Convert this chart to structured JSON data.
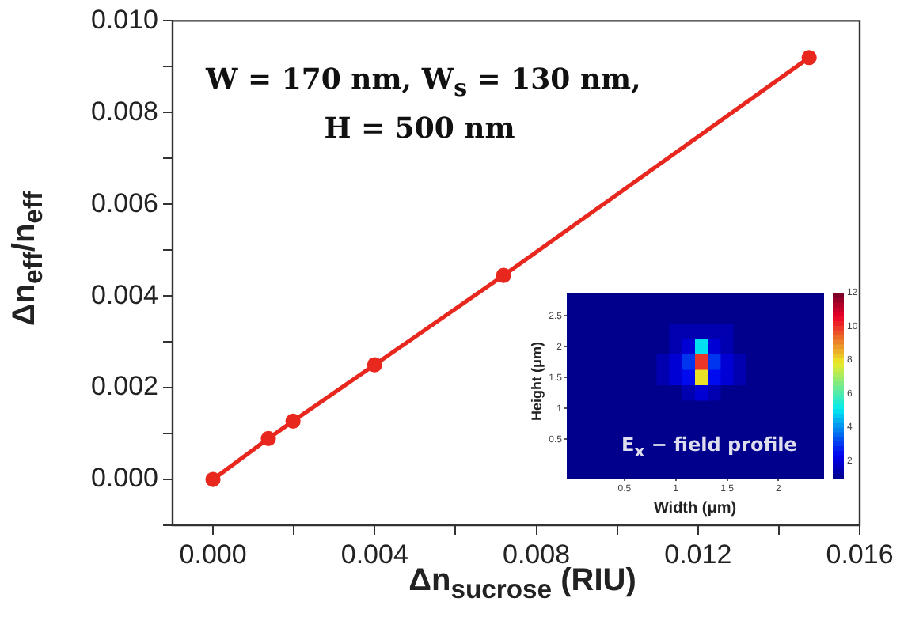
{
  "chart_data": [
    {
      "type": "line",
      "xlabel": "Δn$_{sucrose}$ (RIU)",
      "ylabel": "Δn$_{eff}$/n$_{eff}$",
      "x": [
        0,
        0.00137,
        0.00198,
        0.004,
        0.00719,
        0.01475
      ],
      "series": [
        {
          "color": "#e8281e",
          "values": [
            0,
            0.00089,
            0.00127,
            0.0025,
            0.00445,
            0.0092
          ]
        }
      ],
      "xlim": [
        -0.001,
        0.016
      ],
      "xticks": [
        {
          "value": 0,
          "label": "0.000"
        },
        {
          "value": 0.002,
          "label": null
        },
        {
          "value": 0.004,
          "label": "0.004"
        },
        {
          "value": 0.006,
          "label": null
        },
        {
          "value": 0.008,
          "label": "0.008"
        },
        {
          "value": 0.01,
          "label": null
        },
        {
          "value": 0.012,
          "label": "0.012"
        },
        {
          "value": 0.014,
          "label": null
        },
        {
          "value": 0.016,
          "label": "0.016"
        }
      ],
      "ylim": [
        -0.001,
        0.01
      ],
      "yticks": [
        {
          "value": -0.001,
          "label": null
        },
        {
          "value": 0,
          "label": "0.000"
        },
        {
          "value": 0.001,
          "label": null
        },
        {
          "value": 0.002,
          "label": "0.002"
        },
        {
          "value": 0.003,
          "label": null
        },
        {
          "value": 0.004,
          "label": "0.004"
        },
        {
          "value": 0.005,
          "label": null
        },
        {
          "value": 0.006,
          "label": "0.006"
        },
        {
          "value": 0.007,
          "label": null
        },
        {
          "value": 0.008,
          "label": "0.008"
        },
        {
          "value": 0.009,
          "label": null
        },
        {
          "value": 0.01,
          "label": "0.010"
        }
      ],
      "annotations": [
        "W = 170 nm, W$_{s}$ = 130 nm,\nH = 500 nm"
      ],
      "grid": false,
      "legend": false,
      "marker": "circle",
      "line_style": "solid"
    },
    {
      "type": "heatmap",
      "xlabel": "Width (μm)",
      "ylabel": "Height (μm)",
      "categories": [
        null,
        null,
        null,
        null,
        "0.5",
        null,
        null,
        null,
        "1",
        null,
        null,
        null,
        "1.5",
        null,
        null,
        null,
        "2",
        null,
        null,
        null
      ],
      "y_categories": [
        null,
        "2.5",
        null,
        "2",
        null,
        "1.5",
        null,
        "1",
        null,
        "0.5",
        null,
        null
      ],
      "cells": [
        [
          1,
          1,
          1,
          1,
          1,
          1,
          1,
          1,
          1,
          1,
          1,
          1,
          1,
          1,
          1,
          1,
          1,
          1,
          1,
          1
        ],
        [
          1,
          1,
          1,
          1,
          1,
          1,
          1,
          1,
          1,
          1,
          1,
          1,
          1,
          1,
          1,
          1,
          1,
          1,
          1,
          1
        ],
        [
          1,
          1,
          1,
          1,
          1,
          1,
          1,
          1,
          1.5,
          1.5,
          1.5,
          1.5,
          1.5,
          1,
          1,
          1,
          1,
          1,
          1,
          1
        ],
        [
          1,
          1,
          1,
          1,
          1,
          1,
          1,
          1,
          1.5,
          2,
          5,
          2,
          1.5,
          1,
          1,
          1,
          1,
          1,
          1,
          1
        ],
        [
          1,
          1,
          1,
          1,
          1,
          1,
          1,
          1.5,
          2,
          3,
          10,
          3,
          2,
          1.5,
          1,
          1,
          1,
          1,
          1,
          1
        ],
        [
          1,
          1,
          1,
          1,
          1,
          1,
          1,
          1.5,
          2,
          2.5,
          8,
          2.5,
          2,
          1.5,
          1,
          1,
          1,
          1,
          1,
          1
        ],
        [
          1,
          1,
          1,
          1,
          1,
          1,
          1,
          1,
          1,
          1.5,
          2,
          1.5,
          1,
          1,
          1,
          1,
          1,
          1,
          1,
          1
        ],
        [
          1,
          1,
          1,
          1,
          1,
          1,
          1,
          1,
          1,
          1,
          1,
          1,
          1,
          1,
          1,
          1,
          1,
          1,
          1,
          1
        ],
        [
          1,
          1,
          1,
          1,
          1,
          1,
          1,
          1,
          1,
          1,
          1,
          1,
          1,
          1,
          1,
          1,
          1,
          1,
          1,
          1
        ],
        [
          1,
          1,
          1,
          1,
          1,
          1,
          1,
          1,
          1,
          1,
          1,
          1,
          1,
          1,
          1,
          1,
          1,
          1,
          1,
          1
        ],
        [
          1,
          1,
          1,
          1,
          1,
          1,
          1,
          1,
          1,
          1,
          1,
          1,
          1,
          1,
          1,
          1,
          1,
          1,
          1,
          1
        ],
        [
          1,
          1,
          1,
          1,
          1,
          1,
          1,
          1,
          1,
          1,
          1,
          1,
          1,
          1,
          1,
          1,
          1,
          1,
          1,
          1
        ]
      ],
      "clim": [
        1,
        12
      ],
      "cticks": [
        2,
        4,
        6,
        8,
        10,
        12
      ],
      "annotations": [
        "E$_{x}$ − field profile"
      ]
    }
  ]
}
